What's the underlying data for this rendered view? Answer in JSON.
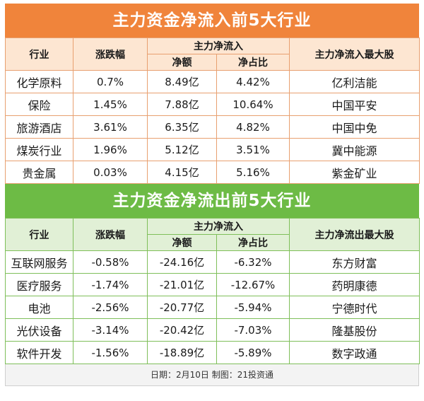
{
  "inflow": {
    "title": "主力资金净流入前5大行业",
    "headers": {
      "industry": "行业",
      "change": "涨跌幅",
      "main_flow": "主力净流入",
      "net": "净额",
      "ratio": "净占比",
      "top_stock": "主力净流入最大股"
    },
    "rows": [
      {
        "industry": "化学原料",
        "change": "0.7%",
        "net": "8.49亿",
        "ratio": "4.42%",
        "stock": "亿利洁能"
      },
      {
        "industry": "保险",
        "change": "1.45%",
        "net": "7.88亿",
        "ratio": "10.64%",
        "stock": "中国平安"
      },
      {
        "industry": "旅游酒店",
        "change": "3.61%",
        "net": "6.35亿",
        "ratio": "4.82%",
        "stock": "中国中免"
      },
      {
        "industry": "煤炭行业",
        "change": "1.96%",
        "net": "5.12亿",
        "ratio": "3.51%",
        "stock": "冀中能源"
      },
      {
        "industry": "贵金属",
        "change": "0.03%",
        "net": "4.15亿",
        "ratio": "5.16%",
        "stock": "紫金矿业"
      }
    ]
  },
  "outflow": {
    "title": "主力资金净流出前5大行业",
    "headers": {
      "industry": "行业",
      "change": "涨跌幅",
      "main_flow": "主力净流入",
      "net": "净额",
      "ratio": "净占比",
      "top_stock": "主力净流出最大股"
    },
    "rows": [
      {
        "industry": "互联网服务",
        "change": "-0.58%",
        "net": "-24.16亿",
        "ratio": "-6.32%",
        "stock": "东方财富"
      },
      {
        "industry": "医疗服务",
        "change": "-1.74%",
        "net": "-21.01亿",
        "ratio": "-12.67%",
        "stock": "药明康德"
      },
      {
        "industry": "电池",
        "change": "-2.56%",
        "net": "-20.77亿",
        "ratio": "-5.94%",
        "stock": "宁德时代"
      },
      {
        "industry": "光伏设备",
        "change": "-3.14%",
        "net": "-20.42亿",
        "ratio": "-7.03%",
        "stock": "隆基股份"
      },
      {
        "industry": "软件开发",
        "change": "-1.56%",
        "net": "-18.89亿",
        "ratio": "-5.89%",
        "stock": "数字政通"
      }
    ]
  },
  "footer": "日期：2月10日  制图：21投资通",
  "colors": {
    "orange": "#f0843b",
    "green": "#6dbb45"
  }
}
